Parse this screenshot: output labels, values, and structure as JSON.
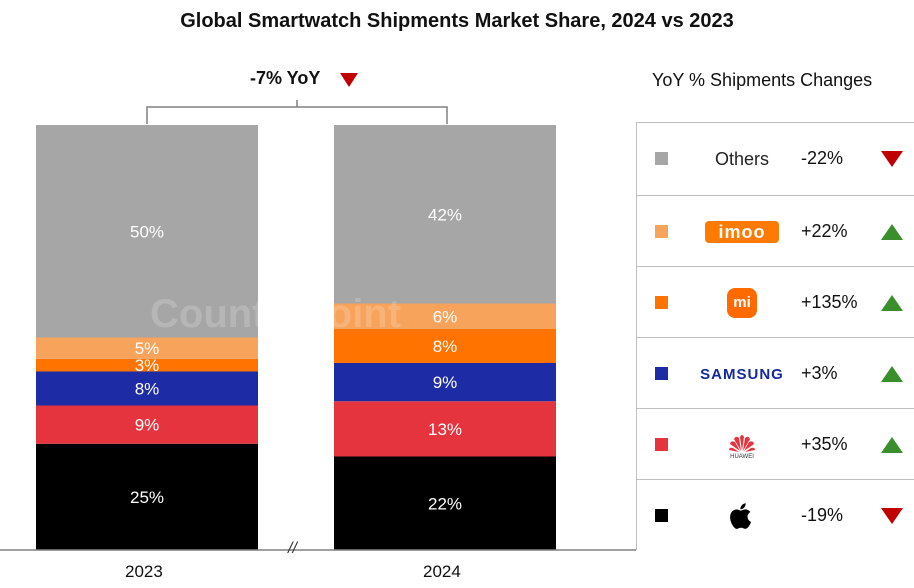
{
  "title": "Global Smartwatch Shipments Market Share, 2024 vs 2023",
  "yoy_total": "-7% YoY",
  "watermark": "Counterpoint",
  "break_mark": "//",
  "legend_title": "YoY % Shipments Changes",
  "colors": {
    "Others": "#a6a6a6",
    "imoo": "#f7a35c",
    "Xiaomi": "#ff7300",
    "Samsung": "#1d2ca4",
    "Huawei": "#e5343d",
    "Apple": "#000000",
    "up": "#3a8f2c",
    "down": "#c00000"
  },
  "legend": [
    {
      "brand": "Others",
      "change": "-22%",
      "direction": "down",
      "brand_label": "Others"
    },
    {
      "brand": "imoo",
      "change": "+22%",
      "direction": "up",
      "brand_label": "imoo"
    },
    {
      "brand": "Xiaomi",
      "change": "+135%",
      "direction": "up",
      "brand_label": "mi"
    },
    {
      "brand": "Samsung",
      "change": "+3%",
      "direction": "up",
      "brand_label": "SAMSUNG"
    },
    {
      "brand": "Huawei",
      "change": "+35%",
      "direction": "up",
      "brand_label": "HUAWEI"
    },
    {
      "brand": "Apple",
      "change": "-19%",
      "direction": "down",
      "brand_label": ""
    }
  ],
  "chart_data": {
    "type": "bar",
    "stacked": true,
    "title": "Global Smartwatch Shipments Market Share, 2024 vs 2023",
    "categories": [
      "2023",
      "2024"
    ],
    "series": [
      {
        "name": "Apple",
        "values": [
          25,
          22
        ]
      },
      {
        "name": "Huawei",
        "values": [
          9,
          13
        ]
      },
      {
        "name": "Samsung",
        "values": [
          8,
          9
        ]
      },
      {
        "name": "Xiaomi",
        "values": [
          3,
          8
        ]
      },
      {
        "name": "imoo",
        "values": [
          5,
          6
        ]
      },
      {
        "name": "Others",
        "values": [
          50,
          42
        ]
      }
    ],
    "labels": {
      "2023": [
        "25%",
        "9%",
        "8%",
        "3%",
        "5%",
        "50%"
      ],
      "2024": [
        "22%",
        "13%",
        "9%",
        "8%",
        "6%",
        "42%"
      ]
    },
    "ylim": [
      0,
      100
    ],
    "units": "%"
  }
}
